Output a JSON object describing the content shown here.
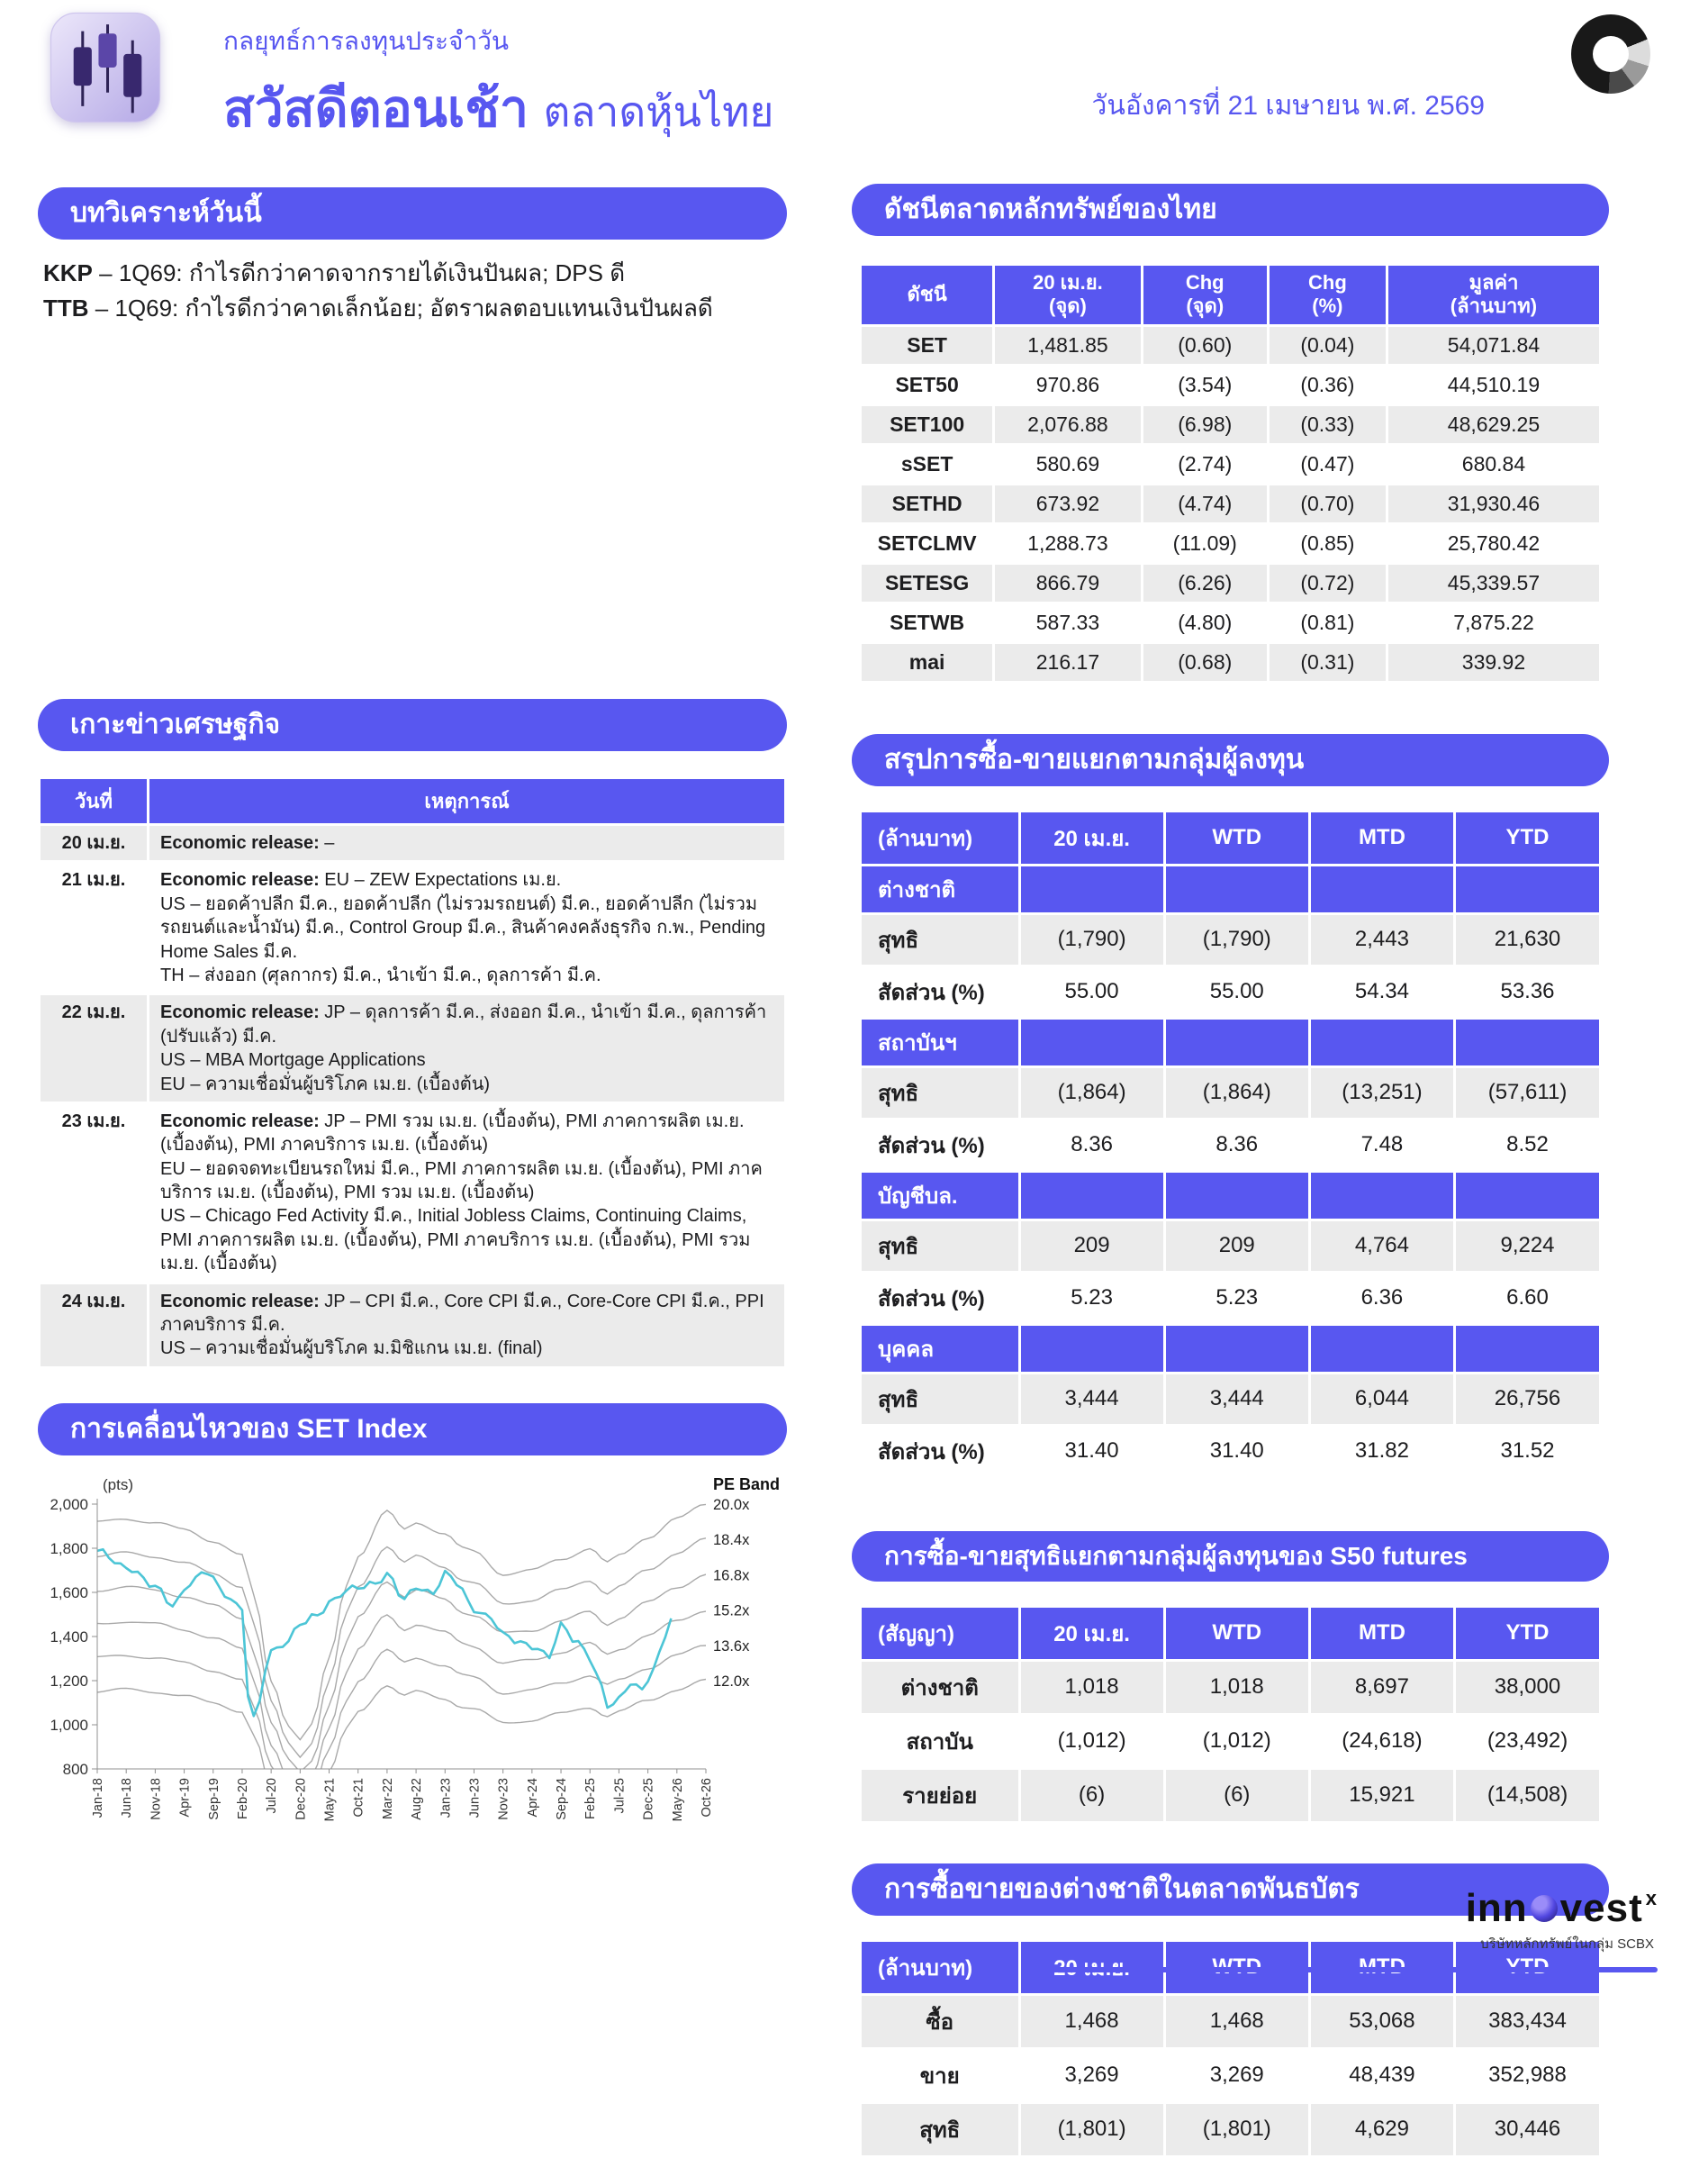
{
  "theme": {
    "accent": "#5857f0",
    "stripe": "#ebebeb",
    "ink": "#1d1d1f",
    "teal": "#4cc5d6",
    "band": "#a9a9a9"
  },
  "header": {
    "kicker": "กลยุทธ์การลงทุนประจำวัน",
    "title": "สวัสดีตอนเช้า",
    "subtitle": "ตลาดหุ้นไทย",
    "date": "วันอังคารที่ 21 เมษายน พ.ศ. 2569"
  },
  "brand": {
    "pre": "inn",
    "post": "vest",
    "sup": "x",
    "caption": "บริษัทหลักทรัพย์ในกลุ่ม SCBX"
  },
  "analysis": {
    "heading": "บทวิเคราะห์วันนี้",
    "items": [
      {
        "ticker": "KKP",
        "text": "– 1Q69: กำไรดีกว่าคาดจากรายได้เงินปันผล; DPS ดี"
      },
      {
        "ticker": "TTB",
        "text": "– 1Q69: กำไรดีกว่าคาดเล็กน้อย; อัตราผลตอบแทนเงินปันผลดี"
      }
    ]
  },
  "indices": {
    "heading": "ดัชนีตลาดหลักทรัพย์ของไทย",
    "columns": [
      "ดัชนี",
      "20 เม.ย.\n(จุด)",
      "Chg\n(จุด)",
      "Chg\n(%)",
      "มูลค่า\n(ล้านบาท)"
    ],
    "rows": [
      [
        "SET",
        "1,481.85",
        "(0.60)",
        "(0.04)",
        "54,071.84"
      ],
      [
        "SET50",
        "970.86",
        "(3.54)",
        "(0.36)",
        "44,510.19"
      ],
      [
        "SET100",
        "2,076.88",
        "(6.98)",
        "(0.33)",
        "48,629.25"
      ],
      [
        "sSET",
        "580.69",
        "(2.74)",
        "(0.47)",
        "680.84"
      ],
      [
        "SETHD",
        "673.92",
        "(4.74)",
        "(0.70)",
        "31,930.46"
      ],
      [
        "SETCLMV",
        "1,288.73",
        "(11.09)",
        "(0.85)",
        "25,780.42"
      ],
      [
        "SETESG",
        "866.79",
        "(6.26)",
        "(0.72)",
        "45,339.57"
      ],
      [
        "SETWB",
        "587.33",
        "(4.80)",
        "(0.81)",
        "7,875.22"
      ],
      [
        "mai",
        "216.17",
        "(0.68)",
        "(0.31)",
        "339.92"
      ]
    ]
  },
  "econ": {
    "heading": "เกาะข่าวเศรษฐกิจ",
    "columns": [
      "วันที่",
      "เหตุการณ์"
    ],
    "rows": [
      {
        "date": "20 เม.ย.",
        "prefix": "Economic release:",
        "lines": [
          "–"
        ]
      },
      {
        "date": "21 เม.ย.",
        "prefix": "Economic release:",
        "lines": [
          "EU – ZEW Expectations เม.ย.",
          "US – ยอดค้าปลีก มี.ค., ยอดค้าปลีก (ไม่รวมรถยนต์) มี.ค., ยอดค้าปลีก (ไม่รวมรถยนต์และน้ำมัน) มี.ค., Control Group มี.ค., สินค้าคงคลังธุรกิจ ก.พ., Pending Home Sales มี.ค.",
          "TH – ส่งออก (ศุลกากร) มี.ค., นำเข้า มี.ค., ดุลการค้า มี.ค."
        ]
      },
      {
        "date": "22 เม.ย.",
        "prefix": "Economic release:",
        "lines": [
          "JP – ดุลการค้า มี.ค., ส่งออก มี.ค., นำเข้า มี.ค., ดุลการค้า (ปรับแล้ว) มี.ค.",
          "US – MBA Mortgage Applications",
          "EU – ความเชื่อมั่นผู้บริโภค เม.ย. (เบื้องต้น)"
        ]
      },
      {
        "date": "23 เม.ย.",
        "prefix": "Economic release:",
        "lines": [
          "JP – PMI รวม เม.ย. (เบื้องต้น), PMI ภาคการผลิต เม.ย. (เบื้องต้น), PMI ภาคบริการ เม.ย. (เบื้องต้น)",
          "EU – ยอดจดทะเบียนรถใหม่ มี.ค., PMI ภาคการผลิต เม.ย. (เบื้องต้น), PMI ภาคบริการ เม.ย. (เบื้องต้น), PMI รวม เม.ย. (เบื้องต้น)",
          "US – Chicago Fed Activity มี.ค., Initial Jobless Claims, Continuing Claims, PMI ภาคการผลิต เม.ย. (เบื้องต้น), PMI ภาคบริการ เม.ย. (เบื้องต้น), PMI รวม เม.ย. (เบื้องต้น)"
        ]
      },
      {
        "date": "24 เม.ย.",
        "prefix": "Economic release:",
        "lines": [
          "JP – CPI มี.ค., Core CPI มี.ค., Core-Core CPI มี.ค., PPI ภาคบริการ มี.ค.",
          "US – ความเชื่อมั่นผู้บริโภค ม.มิชิแกน เม.ย. (final)"
        ]
      }
    ]
  },
  "flows": {
    "heading": "สรุปการซื้อ-ขายแยกตามกลุ่มผู้ลงทุน",
    "columns": [
      "(ล้านบาท)",
      "20 เม.ย.",
      "WTD",
      "MTD",
      "YTD"
    ],
    "net_label": "สุทธิ",
    "share_label": "สัดส่วน (%)",
    "groups": [
      {
        "name": "ต่างชาติ",
        "net": [
          "(1,790)",
          "(1,790)",
          "2,443",
          "21,630"
        ],
        "share": [
          "55.00",
          "55.00",
          "54.34",
          "53.36"
        ]
      },
      {
        "name": "สถาบันฯ",
        "net": [
          "(1,864)",
          "(1,864)",
          "(13,251)",
          "(57,611)"
        ],
        "share": [
          "8.36",
          "8.36",
          "7.48",
          "8.52"
        ]
      },
      {
        "name": "บัญชีบล.",
        "net": [
          "209",
          "209",
          "4,764",
          "9,224"
        ],
        "share": [
          "5.23",
          "5.23",
          "6.36",
          "6.60"
        ]
      },
      {
        "name": "บุคคล",
        "net": [
          "3,444",
          "3,444",
          "6,044",
          "26,756"
        ],
        "share": [
          "31.40",
          "31.40",
          "31.82",
          "31.52"
        ]
      }
    ]
  },
  "s50": {
    "heading": "การซื้อ-ขายสุทธิแยกตามกลุ่มผู้ลงทุนของ S50 futures",
    "columns": [
      "(สัญญา)",
      "20 เม.ย.",
      "WTD",
      "MTD",
      "YTD"
    ],
    "rows": [
      [
        "ต่างชาติ",
        "1,018",
        "1,018",
        "8,697",
        "38,000"
      ],
      [
        "สถาบัน",
        "(1,012)",
        "(1,012)",
        "(24,618)",
        "(23,492)"
      ],
      [
        "รายย่อย",
        "(6)",
        "(6)",
        "15,921",
        "(14,508)"
      ]
    ]
  },
  "bond": {
    "heading": "การซื้อขายของต่างชาติในตลาดพันธบัตร",
    "columns": [
      "(ล้านบาท)",
      "20 เม.ย.",
      "WTD",
      "MTD",
      "YTD"
    ],
    "rows": [
      [
        "ซื้อ",
        "1,468",
        "1,468",
        "53,068",
        "383,434"
      ],
      [
        "ขาย",
        "3,269",
        "3,269",
        "48,439",
        "352,988"
      ],
      [
        "สุทธิ",
        "(1,801)",
        "(1,801)",
        "4,629",
        "30,446"
      ]
    ]
  },
  "chart_data": {
    "type": "line",
    "title": "การเคลื่อนไหวของ SET Index",
    "ylabel": "(pts)",
    "band_label": "PE Band",
    "ylim": [
      800,
      2000
    ],
    "yticks": [
      800,
      1000,
      1200,
      1400,
      1600,
      1800,
      2000
    ],
    "x_labels": [
      "Jan-18",
      "Jun-18",
      "Nov-18",
      "Apr-19",
      "Sep-19",
      "Feb-20",
      "Jul-20",
      "Dec-20",
      "May-21",
      "Oct-21",
      "Mar-22",
      "Aug-22",
      "Jan-23",
      "Jun-23",
      "Nov-23",
      "Apr-24",
      "Sep-24",
      "Feb-25",
      "Jul-25",
      "Dec-25",
      "May-26",
      "Oct-26"
    ],
    "months_per_tick": 5,
    "pe_multiples": [
      20.0,
      18.4,
      16.8,
      15.2,
      13.6,
      12.0
    ],
    "pe_labels": [
      "20.0x",
      "18.4x",
      "16.8x",
      "15.2x",
      "13.6x",
      "12.0x"
    ],
    "band_base_multiple": 12.0,
    "series": [
      {
        "name": "SET Index",
        "color_key": "teal",
        "points": [
          [
            0,
            1780
          ],
          [
            5,
            1720
          ],
          [
            10,
            1620
          ],
          [
            13,
            1550
          ],
          [
            16,
            1640
          ],
          [
            19,
            1690
          ],
          [
            22,
            1600
          ],
          [
            25,
            1520
          ],
          [
            26,
            1130
          ],
          [
            27,
            1020
          ],
          [
            30,
            1340
          ],
          [
            33,
            1380
          ],
          [
            35,
            1450
          ],
          [
            38,
            1500
          ],
          [
            40,
            1560
          ],
          [
            43,
            1600
          ],
          [
            45,
            1620
          ],
          [
            48,
            1650
          ],
          [
            50,
            1680
          ],
          [
            53,
            1560
          ],
          [
            55,
            1630
          ],
          [
            58,
            1600
          ],
          [
            60,
            1680
          ],
          [
            62,
            1640
          ],
          [
            65,
            1530
          ],
          [
            68,
            1480
          ],
          [
            70,
            1400
          ],
          [
            73,
            1380
          ],
          [
            75,
            1360
          ],
          [
            78,
            1300
          ],
          [
            80,
            1450
          ],
          [
            83,
            1380
          ],
          [
            85,
            1300
          ],
          [
            87,
            1160
          ],
          [
            88,
            1080
          ],
          [
            90,
            1120
          ],
          [
            92,
            1200
          ],
          [
            94,
            1150
          ],
          [
            96,
            1250
          ],
          [
            98,
            1400
          ],
          [
            99,
            1482
          ]
        ]
      },
      {
        "name": "PE base 12.0x",
        "color_key": "band",
        "points": [
          [
            0,
            1150
          ],
          [
            5,
            1160
          ],
          [
            10,
            1150
          ],
          [
            15,
            1130
          ],
          [
            20,
            1100
          ],
          [
            25,
            1060
          ],
          [
            27,
            950
          ],
          [
            30,
            720
          ],
          [
            33,
            600
          ],
          [
            35,
            560
          ],
          [
            37,
            600
          ],
          [
            40,
            780
          ],
          [
            43,
            980
          ],
          [
            45,
            1060
          ],
          [
            50,
            1180
          ],
          [
            53,
            1130
          ],
          [
            55,
            1150
          ],
          [
            60,
            1120
          ],
          [
            63,
            1080
          ],
          [
            65,
            1070
          ],
          [
            70,
            1010
          ],
          [
            75,
            1020
          ],
          [
            80,
            1050
          ],
          [
            85,
            1080
          ],
          [
            88,
            1040
          ],
          [
            90,
            1060
          ],
          [
            95,
            1110
          ],
          [
            100,
            1160
          ],
          [
            105,
            1200
          ]
        ]
      }
    ]
  }
}
